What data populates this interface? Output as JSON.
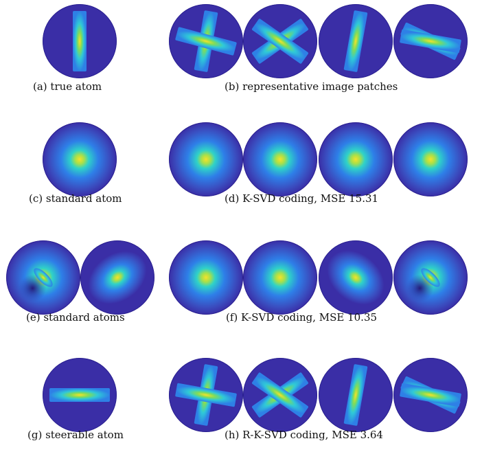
{
  "colors": {
    "background_blue": "#3a2ea6",
    "mid_blue": "#2e7fe8",
    "cyan": "#2fd2c8",
    "yellow": "#f5e22a",
    "edge_navy": "#2a2090"
  },
  "rows": [
    {
      "left_caption": "(a) true atom",
      "right_caption": "(b) representative image patches",
      "left_patches": [
        {
          "kind": "bar",
          "angle": 90,
          "bars": 1
        }
      ],
      "right_patches": [
        {
          "kind": "bar",
          "angle": 80,
          "bars": 2,
          "second_angle": -15
        },
        {
          "kind": "bar",
          "angle": 35,
          "bars": 2,
          "second_angle": -35
        },
        {
          "kind": "bar",
          "angle": 80,
          "bars": 1
        },
        {
          "kind": "bar",
          "angle": -25,
          "bars": 2,
          "second_angle": -10
        }
      ]
    },
    {
      "left_caption": "(c) standard atom",
      "right_caption": "(d) K-SVD coding, MSE 15.31",
      "left_patches": [
        {
          "kind": "blob"
        }
      ],
      "right_patches": [
        {
          "kind": "blob"
        },
        {
          "kind": "blob"
        },
        {
          "kind": "blob"
        },
        {
          "kind": "blob"
        }
      ]
    },
    {
      "left_caption": "(e) standard atoms",
      "right_caption": "(f) K-SVD coding, MSE 10.35",
      "left_patches": [
        {
          "kind": "dipole",
          "angle": -45
        },
        {
          "kind": "elongated",
          "angle": 35
        }
      ],
      "right_patches": [
        {
          "kind": "blob"
        },
        {
          "kind": "blob"
        },
        {
          "kind": "elongated",
          "angle": -40
        },
        {
          "kind": "dipole",
          "angle": -45
        }
      ]
    },
    {
      "left_caption": "(g) steerable atom",
      "right_caption": "(h) R-K-SVD coding, MSE 3.64",
      "left_patches": [
        {
          "kind": "bar",
          "angle": 0,
          "bars": 1
        }
      ],
      "right_patches": [
        {
          "kind": "bar",
          "angle": 80,
          "bars": 2,
          "second_angle": -10
        },
        {
          "kind": "bar",
          "angle": 35,
          "bars": 2,
          "second_angle": -35
        },
        {
          "kind": "bar",
          "angle": 80,
          "bars": 1
        },
        {
          "kind": "bar",
          "angle": -25,
          "bars": 2,
          "second_angle": -10
        }
      ]
    }
  ]
}
